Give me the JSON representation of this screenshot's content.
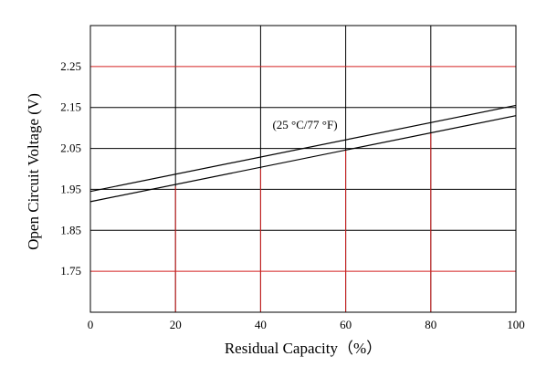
{
  "chart_data": {
    "type": "line",
    "title": "",
    "xlabel": "Residual Capacity（%）",
    "ylabel": "Open Circuit Voltage (V)",
    "xlim": [
      0,
      100
    ],
    "ylim": [
      1.65,
      2.35
    ],
    "x_ticks": [
      0,
      20,
      40,
      60,
      80,
      100
    ],
    "x_tick_labels": [
      "0",
      "20",
      "40",
      "60",
      "80",
      "100"
    ],
    "y_ticks": [
      1.75,
      1.85,
      1.95,
      2.05,
      2.15,
      2.25
    ],
    "y_tick_labels": [
      "1.75",
      "1.85",
      "1.95",
      "2.05",
      "2.15",
      "2.25"
    ],
    "annotation": "(25 °C/77 °F)",
    "grid": true,
    "series": [
      {
        "x": [
          0,
          100
        ],
        "y": [
          1.945,
          2.155
        ],
        "color": "#000000"
      },
      {
        "x": [
          0,
          100
        ],
        "y": [
          1.92,
          2.13
        ],
        "color": "#000000"
      }
    ],
    "reference_lines": {
      "color": "#d42020",
      "horizontal": [
        {
          "y": 2.25,
          "x_from": 0,
          "x_to": 100
        },
        {
          "y": 1.75,
          "x_from": 0,
          "x_to": 100
        }
      ],
      "vertical": [
        {
          "x": 20,
          "y_from": 1.65,
          "y_to": 1.957
        },
        {
          "x": 40,
          "y_from": 1.65,
          "y_to": 2.0
        },
        {
          "x": 60,
          "y_from": 1.65,
          "y_to": 2.046
        },
        {
          "x": 80,
          "y_from": 1.65,
          "y_to": 2.088
        }
      ]
    },
    "grid_color": "#000000",
    "reference_color": "#d42020"
  }
}
